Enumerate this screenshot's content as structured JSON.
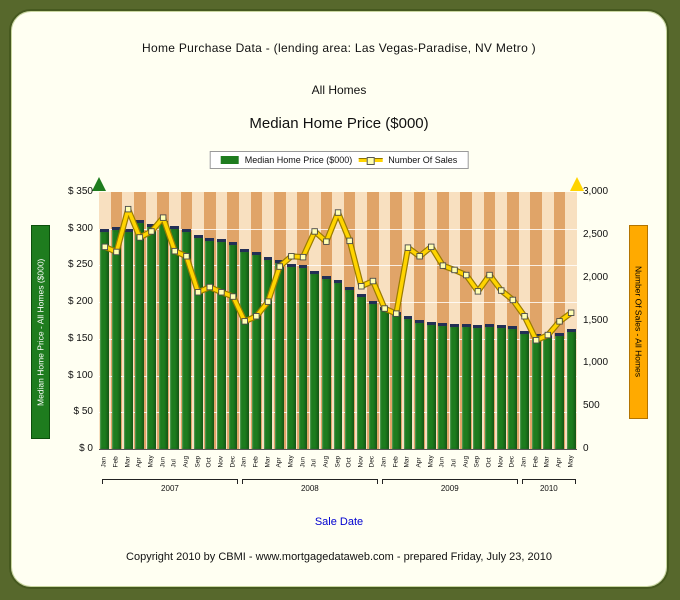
{
  "panel": {
    "title_line1": "Home Purchase Data - (lending area: Las Vegas-Paradise, NV Metro  )",
    "title_line2": "All Homes",
    "chart_title": "Median Home Price ($000)",
    "footer": "Copyright 2010 by CBMI - www.mortgagedataweb.com - prepared Friday, July 23, 2010"
  },
  "legend": {
    "series1": "Median Home Price ($000)",
    "series2": "Number Of Sales"
  },
  "axes": {
    "left_title": "Median Home Price - All Homes ($000)",
    "right_title": "Number Of Sales - All Homes",
    "x_title": "Sale Date",
    "left_ticks": [
      "$ 350",
      "$ 300",
      "$ 250",
      "$ 200",
      "$ 150",
      "$ 100",
      "$ 50",
      "$ 0"
    ],
    "right_ticks": [
      "3,000",
      "2,500",
      "2,000",
      "1,500",
      "1,000",
      "500",
      "0"
    ]
  },
  "colors": {
    "bar_green": "#1e7c1e",
    "bar_cap": "#232f55",
    "line_gold": "#ffd400",
    "line_outline": "#9a7b00",
    "marker_fill": "#ffffb3",
    "marker_border": "#4a4a4a",
    "stripe_light": "#f8e0c0",
    "stripe_dark": "#e0a468",
    "banner_green": "#1e7c1e",
    "banner_orange": "#ffaa00",
    "sale_date_blue": "#0000d0",
    "page_green": "#57682c"
  },
  "chart_data": {
    "type": "bar+line",
    "x": [
      "Jan",
      "Feb",
      "Mar",
      "Apr",
      "May",
      "Jun",
      "Jul",
      "Aug",
      "Sep",
      "Oct",
      "Nov",
      "Dec",
      "Jan",
      "Feb",
      "Mar",
      "Apr",
      "May",
      "Jun",
      "Jul",
      "Aug",
      "Sep",
      "Oct",
      "Nov",
      "Dec",
      "Jan",
      "Feb",
      "Mar",
      "Apr",
      "May",
      "Jun",
      "Jul",
      "Aug",
      "Sep",
      "Oct",
      "Nov",
      "Dec",
      "Jan",
      "Feb",
      "Mar",
      "Apr",
      "May"
    ],
    "year_groups": [
      {
        "label": "2007",
        "count": 12
      },
      {
        "label": "2008",
        "count": 12
      },
      {
        "label": "2009",
        "count": 12
      },
      {
        "label": "2010",
        "count": 5
      }
    ],
    "left_axis": {
      "min": 0,
      "max": 350,
      "step": 50
    },
    "right_axis": {
      "min": 0,
      "max": 3000,
      "step": 500
    },
    "series": [
      {
        "name": "Median Home Price ($000)",
        "type": "bar",
        "axis": "left",
        "color": "#1e7c1e",
        "values": [
          300,
          302,
          300,
          312,
          306,
          310,
          304,
          300,
          292,
          288,
          286,
          282,
          272,
          268,
          262,
          257,
          252,
          250,
          242,
          236,
          230,
          221,
          211,
          202,
          194,
          186,
          181,
          176,
          173,
          171,
          170,
          170,
          169,
          170,
          169,
          168,
          161,
          156,
          155,
          158,
          163
        ]
      },
      {
        "name": "Number Of Sales",
        "type": "line",
        "axis": "right",
        "color": "#ffd400",
        "marker_color": "#ffffb3",
        "values": [
          2360,
          2300,
          2800,
          2470,
          2540,
          2700,
          2310,
          2250,
          1830,
          1890,
          1830,
          1780,
          1490,
          1550,
          1720,
          2130,
          2250,
          2240,
          2540,
          2420,
          2760,
          2430,
          1900,
          1960,
          1640,
          1580,
          2350,
          2250,
          2360,
          2140,
          2090,
          2030,
          1840,
          2030,
          1850,
          1740,
          1550,
          1270,
          1330,
          1490,
          1590
        ]
      }
    ]
  }
}
